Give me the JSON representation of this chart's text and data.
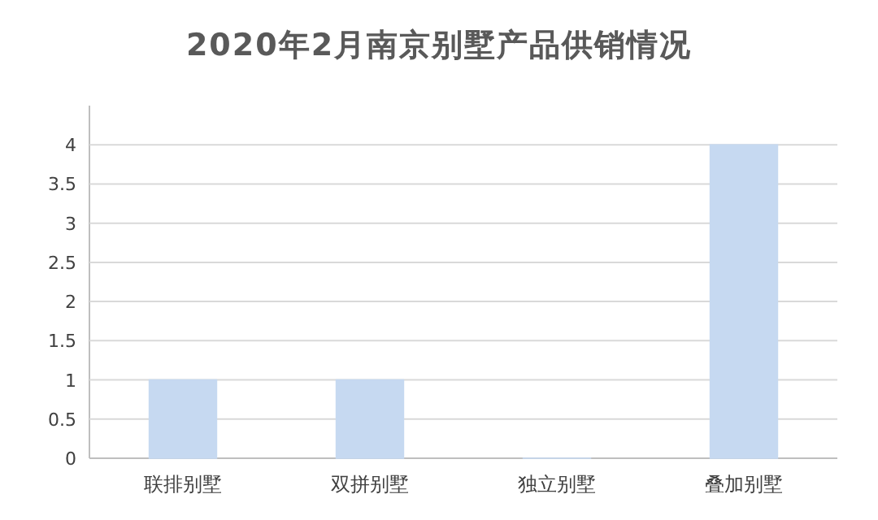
{
  "chart_data": {
    "type": "bar",
    "title": "2020年2月南京别墅产品供销情况",
    "categories": [
      "联排别墅",
      "双拼别墅",
      "独立别墅",
      "叠加别墅"
    ],
    "values": [
      1,
      1,
      0,
      4
    ],
    "color": "#c6d9f1",
    "ylim": [
      0,
      4.5
    ],
    "yticks": [
      0,
      0.5,
      1,
      1.5,
      2,
      2.5,
      3,
      3.5,
      4
    ],
    "grid": true
  }
}
